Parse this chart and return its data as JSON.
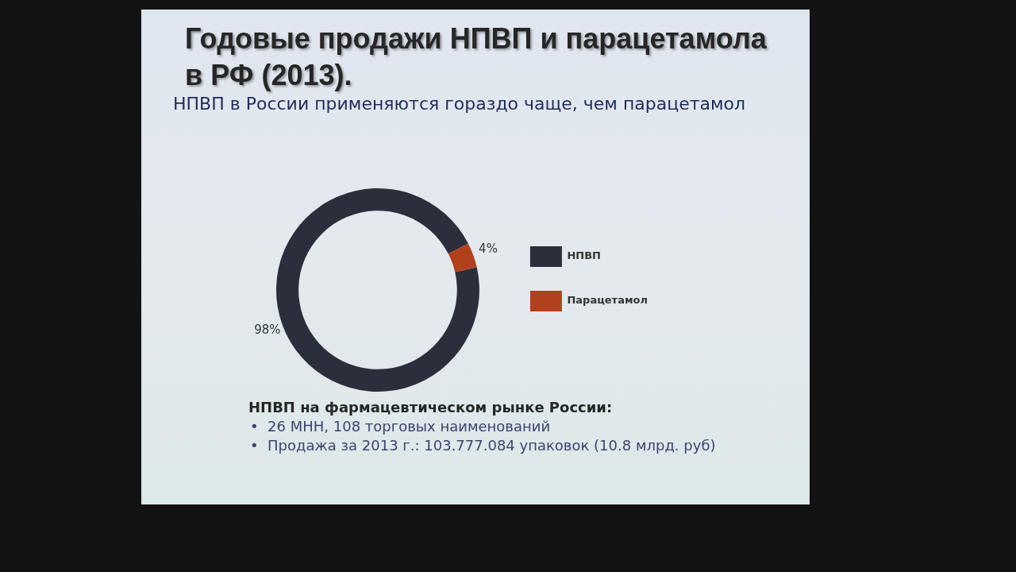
{
  "chart_data": {
    "type": "donut",
    "title": "Годовые продажи НПВП и парацетамола в РФ (2013).",
    "subtitle": "НПВП в России применяются гораздо чаще, чем парацетамол",
    "categories": [
      "НПВП",
      "Парацетамол"
    ],
    "values": [
      98,
      4
    ],
    "colors": [
      "#2c2f3b",
      "#b3401c"
    ],
    "value_labels": [
      "98%",
      "4%"
    ],
    "legend": "right",
    "annotations": [
      "НПВП на фармацевтическом рынке России:",
      "•  26 МНН, 108 торговых наименований",
      "•  Продажа за 2013 г.: 103.777.084 упаковок (10.8 млрд. руб)"
    ]
  }
}
